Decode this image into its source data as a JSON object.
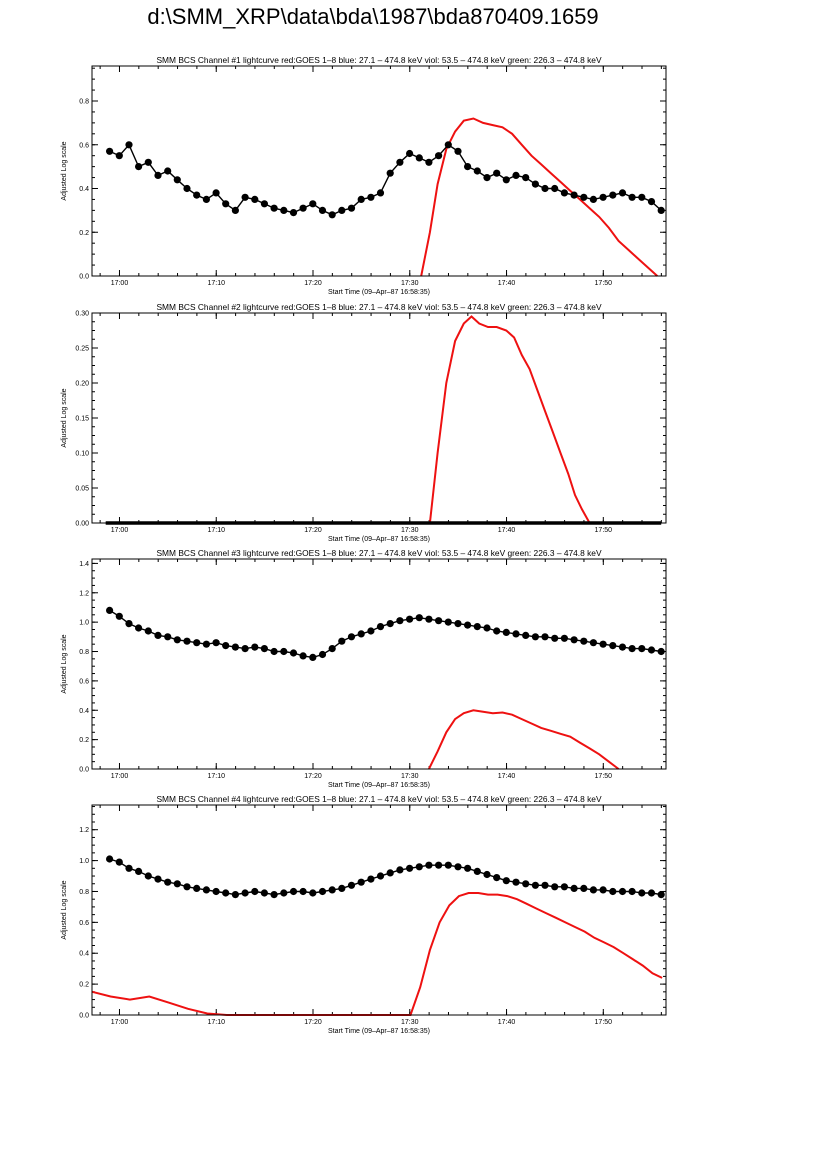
{
  "page": {
    "title": "d:\\SMM_XRP\\data\\bda\\1987\\bda870409.1659"
  },
  "colors": {
    "goes": "#ee1111",
    "bcs": "#000000",
    "axis": "#000000"
  },
  "chart_data": [
    {
      "type": "line",
      "title": "SMM BCS Channel #1 lightcurve  red:GOES 1–8  blue: 27.1 – 474.8 keV  viol: 53.5 – 474.8 keV  green: 226.3 – 474.8 keV",
      "xlabel": "Start Time (09–Apr–87 16:58:35)",
      "ylabel": "Adjusted Log scale",
      "xlim": [
        -1.42,
        57.9
      ],
      "ylim": [
        0,
        0.96
      ],
      "xticks": [
        1.42,
        11.42,
        21.42,
        31.42,
        41.42,
        51.42
      ],
      "xticklabels": [
        "17:00",
        "17:10",
        "17:20",
        "17:30",
        "17:40",
        "17:50"
      ],
      "yticks": [
        0,
        0.2,
        0.4,
        0.6,
        0.8
      ],
      "yticklabels": [
        "0.0",
        "0.2",
        "0.4",
        "0.6",
        "0.8"
      ],
      "series": [
        {
          "name": "GOES 1–8",
          "color": "red",
          "x": [
            32.6,
            33.5,
            34.3,
            35.2,
            36.1,
            37.0,
            38.0,
            39.0,
            40.0,
            41.0,
            42.0,
            43.0,
            44.0,
            45.0,
            46.0,
            47.0,
            48.0,
            49.0,
            50.0,
            51.0,
            52.0,
            53.0,
            54.0,
            55.0,
            56.0,
            57.0
          ],
          "y": [
            0.0,
            0.2,
            0.42,
            0.58,
            0.66,
            0.71,
            0.72,
            0.7,
            0.69,
            0.68,
            0.65,
            0.6,
            0.55,
            0.51,
            0.47,
            0.43,
            0.39,
            0.35,
            0.31,
            0.27,
            0.22,
            0.16,
            0.12,
            0.08,
            0.04,
            0.0
          ]
        },
        {
          "name": "BCS channel 1",
          "color": "black",
          "marker": "circle",
          "x": [
            0.4,
            1.4,
            2.4,
            3.4,
            4.4,
            5.4,
            6.4,
            7.4,
            8.4,
            9.4,
            10.4,
            11.4,
            12.4,
            13.4,
            14.4,
            15.4,
            16.4,
            17.4,
            18.4,
            19.4,
            20.4,
            21.4,
            22.4,
            23.4,
            24.4,
            25.4,
            26.4,
            27.4,
            28.4,
            29.4,
            30.4,
            31.4,
            32.4,
            33.4,
            34.4,
            35.4,
            36.4,
            37.4,
            38.4,
            39.4,
            40.4,
            41.4,
            42.4,
            43.4,
            44.4,
            45.4,
            46.4,
            47.4,
            48.4,
            49.4,
            50.4,
            51.4,
            52.4,
            53.4,
            54.4,
            55.4,
            56.4,
            57.4
          ],
          "y": [
            0.57,
            0.55,
            0.6,
            0.5,
            0.52,
            0.46,
            0.48,
            0.44,
            0.4,
            0.37,
            0.35,
            0.38,
            0.33,
            0.3,
            0.36,
            0.35,
            0.33,
            0.31,
            0.3,
            0.29,
            0.31,
            0.33,
            0.3,
            0.28,
            0.3,
            0.31,
            0.35,
            0.36,
            0.38,
            0.47,
            0.52,
            0.56,
            0.54,
            0.52,
            0.55,
            0.6,
            0.57,
            0.5,
            0.48,
            0.45,
            0.47,
            0.44,
            0.46,
            0.45,
            0.42,
            0.4,
            0.4,
            0.38,
            0.37,
            0.36,
            0.35,
            0.36,
            0.37,
            0.38,
            0.36,
            0.36,
            0.34,
            0.3
          ]
        }
      ]
    },
    {
      "type": "line",
      "title": "SMM BCS Channel #2 lightcurve  red:GOES 1–8  blue: 27.1 – 474.8 keV  viol: 53.5 – 474.8 keV  green: 226.3 – 474.8 keV",
      "xlabel": "Start Time (09–Apr–87 16:58:35)",
      "ylabel": "Adjusted Log scale",
      "xlim": [
        -1.42,
        57.9
      ],
      "ylim": [
        0,
        0.3
      ],
      "xticks": [
        1.42,
        11.42,
        21.42,
        31.42,
        41.42,
        51.42
      ],
      "xticklabels": [
        "17:00",
        "17:10",
        "17:20",
        "17:30",
        "17:40",
        "17:50"
      ],
      "yticks": [
        0,
        0.05,
        0.1,
        0.15,
        0.2,
        0.25,
        0.3
      ],
      "yticklabels": [
        "0.00",
        "0.05",
        "0.10",
        "0.15",
        "0.20",
        "0.25",
        "0.30"
      ],
      "series": [
        {
          "name": "GOES 1–8",
          "color": "red",
          "x": [
            33.5,
            34.3,
            35.2,
            36.1,
            37.0,
            37.8,
            38.6,
            39.5,
            40.4,
            41.4,
            42.2,
            43.0,
            43.8,
            44.6,
            45.4,
            46.2,
            47.0,
            47.8,
            48.5,
            49.2,
            50.0
          ],
          "y": [
            0.0,
            0.1,
            0.2,
            0.26,
            0.285,
            0.295,
            0.285,
            0.28,
            0.28,
            0.275,
            0.265,
            0.24,
            0.22,
            0.19,
            0.16,
            0.13,
            0.1,
            0.07,
            0.04,
            0.02,
            0.0
          ]
        },
        {
          "name": "BCS channel 2",
          "color": "black",
          "marker": "circle",
          "x": [
            0.0,
            57.4
          ],
          "y": [
            0.0,
            0.0
          ]
        }
      ]
    },
    {
      "type": "line",
      "title": "SMM BCS Channel #3 lightcurve  red:GOES 1–8  blue: 27.1 – 474.8 keV  viol: 53.5 – 474.8 keV  green: 226.3 – 474.8 keV",
      "xlabel": "Start Time (09–Apr–87 16:58:35)",
      "ylabel": "Adjusted Log scale",
      "xlim": [
        -1.42,
        57.9
      ],
      "ylim": [
        0,
        1.43
      ],
      "xticks": [
        1.42,
        11.42,
        21.42,
        31.42,
        41.42,
        51.42
      ],
      "xticklabels": [
        "17:00",
        "17:10",
        "17:20",
        "17:30",
        "17:40",
        "17:50"
      ],
      "yticks": [
        0,
        0.2,
        0.4,
        0.6,
        0.8,
        1.0,
        1.2,
        1.4
      ],
      "yticklabels": [
        "0.0",
        "0.2",
        "0.4",
        "0.6",
        "0.8",
        "1.0",
        "1.2",
        "1.4"
      ],
      "series": [
        {
          "name": "GOES 1–8",
          "color": "red",
          "x": [
            33.4,
            34.3,
            35.2,
            36.1,
            37.0,
            38.0,
            39.0,
            40.0,
            41.0,
            42.0,
            43.0,
            44.0,
            45.0,
            46.0,
            47.0,
            48.0,
            49.0,
            50.0,
            51.0,
            52.0,
            53.0
          ],
          "y": [
            0.0,
            0.12,
            0.25,
            0.34,
            0.38,
            0.4,
            0.39,
            0.38,
            0.385,
            0.37,
            0.34,
            0.31,
            0.28,
            0.26,
            0.24,
            0.22,
            0.18,
            0.14,
            0.1,
            0.05,
            0.0
          ]
        },
        {
          "name": "BCS channel 3",
          "color": "black",
          "marker": "circle",
          "x": [
            0.4,
            1.4,
            2.4,
            3.4,
            4.4,
            5.4,
            6.4,
            7.4,
            8.4,
            9.4,
            10.4,
            11.4,
            12.4,
            13.4,
            14.4,
            15.4,
            16.4,
            17.4,
            18.4,
            19.4,
            20.4,
            21.4,
            22.4,
            23.4,
            24.4,
            25.4,
            26.4,
            27.4,
            28.4,
            29.4,
            30.4,
            31.4,
            32.4,
            33.4,
            34.4,
            35.4,
            36.4,
            37.4,
            38.4,
            39.4,
            40.4,
            41.4,
            42.4,
            43.4,
            44.4,
            45.4,
            46.4,
            47.4,
            48.4,
            49.4,
            50.4,
            51.4,
            52.4,
            53.4,
            54.4,
            55.4,
            56.4,
            57.4
          ],
          "y": [
            1.08,
            1.04,
            0.99,
            0.96,
            0.94,
            0.91,
            0.9,
            0.88,
            0.87,
            0.86,
            0.85,
            0.86,
            0.84,
            0.83,
            0.82,
            0.83,
            0.82,
            0.8,
            0.8,
            0.79,
            0.77,
            0.76,
            0.78,
            0.82,
            0.87,
            0.9,
            0.92,
            0.94,
            0.97,
            0.99,
            1.01,
            1.02,
            1.03,
            1.02,
            1.01,
            1.0,
            0.99,
            0.98,
            0.97,
            0.96,
            0.94,
            0.93,
            0.92,
            0.91,
            0.9,
            0.9,
            0.89,
            0.89,
            0.88,
            0.87,
            0.86,
            0.85,
            0.84,
            0.83,
            0.82,
            0.82,
            0.81,
            0.8
          ]
        }
      ]
    },
    {
      "type": "line",
      "title": "SMM BCS Channel #4 lightcurve  red:GOES 1–8  blue: 27.1 – 474.8 keV  viol: 53.5 – 474.8 keV  green: 226.3 – 474.8 keV",
      "xlabel": "Start Time (09–Apr–87 16:58:35)",
      "ylabel": "Adjusted Log scale",
      "xlim": [
        -1.42,
        57.9
      ],
      "ylim": [
        0,
        1.36
      ],
      "xticks": [
        1.42,
        11.42,
        21.42,
        31.42,
        41.42,
        51.42
      ],
      "xticklabels": [
        "17:00",
        "17:10",
        "17:20",
        "17:30",
        "17:40",
        "17:50"
      ],
      "yticks": [
        0,
        0.2,
        0.4,
        0.6,
        0.8,
        1.0,
        1.2
      ],
      "yticklabels": [
        "0.0",
        "0.2",
        "0.4",
        "0.6",
        "0.8",
        "1.0",
        "1.2"
      ],
      "series": [
        {
          "name": "GOES 1–8",
          "color": "red",
          "x": [
            -1.4,
            0.5,
            2.5,
            4.5,
            6.5,
            8.5,
            10.5,
            12.5,
            14.5,
            16.5,
            31.5,
            32.5,
            33.5,
            34.5,
            35.5,
            36.5,
            37.5,
            38.5,
            39.5,
            40.5,
            41.5,
            42.5,
            43.5,
            44.5,
            45.5,
            46.5,
            47.5,
            48.5,
            49.5,
            50.5,
            51.5,
            52.5,
            53.5,
            54.5,
            55.5,
            56.5,
            57.5
          ],
          "y": [
            0.15,
            0.12,
            0.1,
            0.12,
            0.08,
            0.04,
            0.01,
            0.0,
            0.0,
            0.0,
            0.0,
            0.18,
            0.42,
            0.6,
            0.71,
            0.77,
            0.79,
            0.79,
            0.78,
            0.78,
            0.77,
            0.75,
            0.72,
            0.69,
            0.66,
            0.63,
            0.6,
            0.57,
            0.54,
            0.5,
            0.47,
            0.44,
            0.4,
            0.36,
            0.32,
            0.27,
            0.24
          ]
        },
        {
          "name": "BCS channel 4",
          "color": "black",
          "marker": "circle",
          "x": [
            0.4,
            1.4,
            2.4,
            3.4,
            4.4,
            5.4,
            6.4,
            7.4,
            8.4,
            9.4,
            10.4,
            11.4,
            12.4,
            13.4,
            14.4,
            15.4,
            16.4,
            17.4,
            18.4,
            19.4,
            20.4,
            21.4,
            22.4,
            23.4,
            24.4,
            25.4,
            26.4,
            27.4,
            28.4,
            29.4,
            30.4,
            31.4,
            32.4,
            33.4,
            34.4,
            35.4,
            36.4,
            37.4,
            38.4,
            39.4,
            40.4,
            41.4,
            42.4,
            43.4,
            44.4,
            45.4,
            46.4,
            47.4,
            48.4,
            49.4,
            50.4,
            51.4,
            52.4,
            53.4,
            54.4,
            55.4,
            56.4,
            57.4
          ],
          "y": [
            1.01,
            0.99,
            0.95,
            0.93,
            0.9,
            0.88,
            0.86,
            0.85,
            0.83,
            0.82,
            0.81,
            0.8,
            0.79,
            0.78,
            0.79,
            0.8,
            0.79,
            0.78,
            0.79,
            0.8,
            0.8,
            0.79,
            0.8,
            0.81,
            0.82,
            0.84,
            0.86,
            0.88,
            0.9,
            0.92,
            0.94,
            0.95,
            0.96,
            0.97,
            0.97,
            0.97,
            0.96,
            0.95,
            0.93,
            0.91,
            0.89,
            0.87,
            0.86,
            0.85,
            0.84,
            0.84,
            0.83,
            0.83,
            0.82,
            0.82,
            0.81,
            0.81,
            0.8,
            0.8,
            0.8,
            0.79,
            0.79,
            0.78
          ]
        }
      ]
    }
  ]
}
